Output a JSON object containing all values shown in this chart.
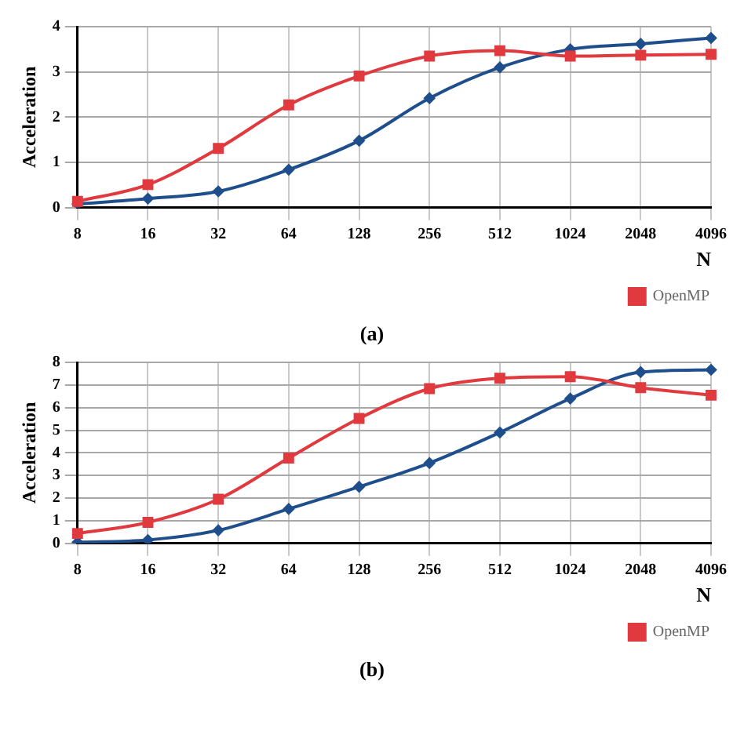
{
  "chart_data": [
    {
      "type": "line",
      "categories": [
        "8",
        "16",
        "32",
        "64",
        "128",
        "256",
        "512",
        "1024",
        "2048",
        "4096"
      ],
      "xlabel": "N",
      "ylabel": "Acceleration",
      "ylim": [
        0,
        4
      ],
      "yticks": [
        0,
        1,
        2,
        3,
        4
      ],
      "grid": true,
      "legend": "bottom right",
      "annotations": [
        "(a)"
      ],
      "series": [
        {
          "color": "#1f4e8c",
          "marker": "diamond",
          "values": [
            0.08,
            0.2,
            0.36,
            0.84,
            1.48,
            2.42,
            3.1,
            3.5,
            3.62,
            3.75
          ]
        },
        {
          "name": "OpenMP",
          "color": "#e0393e",
          "marker": "square",
          "values": [
            0.14,
            0.51,
            1.31,
            2.27,
            2.91,
            3.35,
            3.47,
            3.35,
            3.37,
            3.39
          ]
        }
      ]
    },
    {
      "type": "line",
      "categories": [
        "8",
        "16",
        "32",
        "64",
        "128",
        "256",
        "512",
        "1024",
        "2048",
        "4096"
      ],
      "xlabel": "N",
      "ylabel": "Acceleration",
      "ylim": [
        0,
        8
      ],
      "yticks": [
        0,
        1,
        2,
        3,
        4,
        5,
        6,
        7,
        8
      ],
      "grid": true,
      "legend": "bottom right",
      "annotations": [
        "(b)"
      ],
      "series": [
        {
          "color": "#1f4e8c",
          "marker": "diamond",
          "values": [
            0.05,
            0.15,
            0.58,
            1.52,
            2.5,
            3.55,
            4.9,
            6.4,
            7.57,
            7.67
          ]
        },
        {
          "name": "OpenMP",
          "color": "#e0393e",
          "marker": "square",
          "values": [
            0.44,
            0.93,
            1.95,
            3.77,
            5.52,
            6.84,
            7.3,
            7.37,
            6.88,
            6.55
          ]
        }
      ]
    }
  ]
}
